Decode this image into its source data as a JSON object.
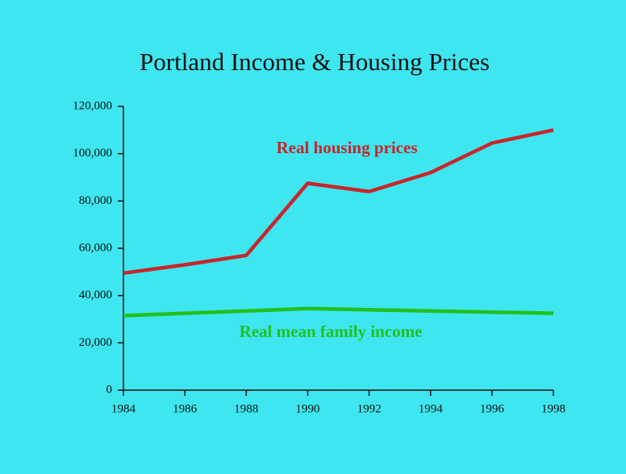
{
  "chart_data": {
    "type": "line",
    "title": "Portland Income & Housing Prices",
    "x": [
      1984,
      1986,
      1988,
      1990,
      1992,
      1994,
      1996,
      1998
    ],
    "series": [
      {
        "name": "Real housing prices",
        "color": "#c8262b",
        "values": [
          49500,
          53000,
          57000,
          87500,
          84000,
          92000,
          104500,
          110000
        ]
      },
      {
        "name": "Real mean family income",
        "color": "#22c01c",
        "values": [
          31500,
          32500,
          33500,
          34500,
          34000,
          33500,
          33000,
          32500
        ]
      }
    ],
    "xlim": [
      1984,
      1998
    ],
    "xticks": [
      1984,
      1986,
      1988,
      1990,
      1992,
      1994,
      1996,
      1998
    ],
    "ylim": [
      0,
      120000
    ],
    "yticks": [
      0,
      {
        "value": 20000,
        "label": "20,000"
      },
      {
        "value": 40000,
        "label": "40,000"
      },
      {
        "value": 60000,
        "label": "60,000"
      },
      {
        "value": 80000,
        "label": "80,000"
      },
      {
        "value": 100000,
        "label": "100,000"
      },
      {
        "value": 120000,
        "label": "120,000"
      }
    ],
    "grid": false
  }
}
